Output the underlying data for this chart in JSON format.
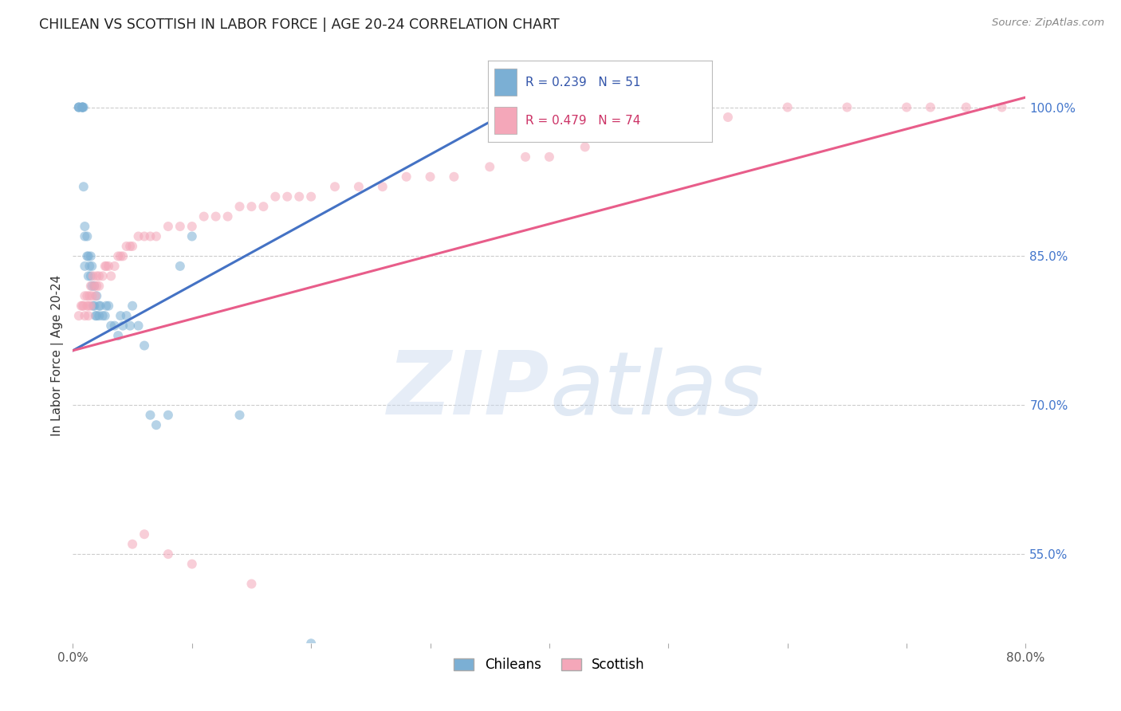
{
  "title": "CHILEAN VS SCOTTISH IN LABOR FORCE | AGE 20-24 CORRELATION CHART",
  "source": "Source: ZipAtlas.com",
  "ylabel": "In Labor Force | Age 20-24",
  "xlim": [
    0.0,
    0.8
  ],
  "ylim": [
    0.46,
    1.04
  ],
  "xticks": [
    0.0,
    0.1,
    0.2,
    0.3,
    0.4,
    0.5,
    0.6,
    0.7,
    0.8
  ],
  "xticklabels": [
    "0.0%",
    "",
    "",
    "",
    "",
    "",
    "",
    "",
    "80.0%"
  ],
  "yticks": [
    0.55,
    0.7,
    0.85,
    1.0
  ],
  "yticklabels": [
    "55.0%",
    "70.0%",
    "85.0%",
    "100.0%"
  ],
  "grid_color": "#cccccc",
  "background_color": "#ffffff",
  "legend_R_blue": "0.239",
  "legend_N_blue": "51",
  "legend_R_pink": "0.479",
  "legend_N_pink": "74",
  "blue_color": "#7bafd4",
  "pink_color": "#f4a7b9",
  "blue_line_color": "#4472c4",
  "pink_line_color": "#e85d8a",
  "scatter_alpha": 0.55,
  "marker_size": 75,
  "chilean_x": [
    0.005,
    0.005,
    0.005,
    0.008,
    0.008,
    0.008,
    0.008,
    0.009,
    0.009,
    0.01,
    0.01,
    0.01,
    0.012,
    0.012,
    0.013,
    0.013,
    0.014,
    0.015,
    0.015,
    0.016,
    0.016,
    0.017,
    0.018,
    0.018,
    0.019,
    0.02,
    0.02,
    0.022,
    0.022,
    0.023,
    0.025,
    0.027,
    0.028,
    0.03,
    0.032,
    0.035,
    0.038,
    0.04,
    0.042,
    0.045,
    0.048,
    0.05,
    0.055,
    0.06,
    0.065,
    0.07,
    0.08,
    0.09,
    0.1,
    0.14,
    0.2
  ],
  "chilean_y": [
    1.0,
    1.0,
    1.0,
    1.0,
    1.0,
    1.0,
    1.0,
    1.0,
    0.92,
    0.88,
    0.87,
    0.84,
    0.87,
    0.85,
    0.83,
    0.85,
    0.84,
    0.83,
    0.85,
    0.84,
    0.82,
    0.8,
    0.82,
    0.8,
    0.79,
    0.81,
    0.79,
    0.79,
    0.8,
    0.8,
    0.79,
    0.79,
    0.8,
    0.8,
    0.78,
    0.78,
    0.77,
    0.79,
    0.78,
    0.79,
    0.78,
    0.8,
    0.78,
    0.76,
    0.69,
    0.68,
    0.69,
    0.84,
    0.87,
    0.69,
    0.46
  ],
  "scottish_x": [
    0.005,
    0.007,
    0.008,
    0.009,
    0.01,
    0.01,
    0.012,
    0.012,
    0.013,
    0.013,
    0.014,
    0.015,
    0.015,
    0.016,
    0.017,
    0.018,
    0.019,
    0.02,
    0.02,
    0.022,
    0.022,
    0.025,
    0.027,
    0.028,
    0.03,
    0.032,
    0.035,
    0.038,
    0.04,
    0.042,
    0.045,
    0.048,
    0.05,
    0.055,
    0.06,
    0.065,
    0.07,
    0.08,
    0.09,
    0.1,
    0.11,
    0.12,
    0.13,
    0.14,
    0.15,
    0.16,
    0.17,
    0.18,
    0.19,
    0.2,
    0.22,
    0.24,
    0.26,
    0.28,
    0.3,
    0.32,
    0.35,
    0.38,
    0.4,
    0.43,
    0.46,
    0.5,
    0.55,
    0.6,
    0.65,
    0.7,
    0.72,
    0.75,
    0.78,
    0.05,
    0.06,
    0.08,
    0.1,
    0.15
  ],
  "scottish_y": [
    0.79,
    0.8,
    0.8,
    0.8,
    0.81,
    0.79,
    0.8,
    0.81,
    0.79,
    0.8,
    0.81,
    0.8,
    0.82,
    0.81,
    0.83,
    0.82,
    0.81,
    0.83,
    0.82,
    0.82,
    0.83,
    0.83,
    0.84,
    0.84,
    0.84,
    0.83,
    0.84,
    0.85,
    0.85,
    0.85,
    0.86,
    0.86,
    0.86,
    0.87,
    0.87,
    0.87,
    0.87,
    0.88,
    0.88,
    0.88,
    0.89,
    0.89,
    0.89,
    0.9,
    0.9,
    0.9,
    0.91,
    0.91,
    0.91,
    0.91,
    0.92,
    0.92,
    0.92,
    0.93,
    0.93,
    0.93,
    0.94,
    0.95,
    0.95,
    0.96,
    0.97,
    0.98,
    0.99,
    1.0,
    1.0,
    1.0,
    1.0,
    1.0,
    1.0,
    0.56,
    0.57,
    0.55,
    0.54,
    0.52
  ]
}
